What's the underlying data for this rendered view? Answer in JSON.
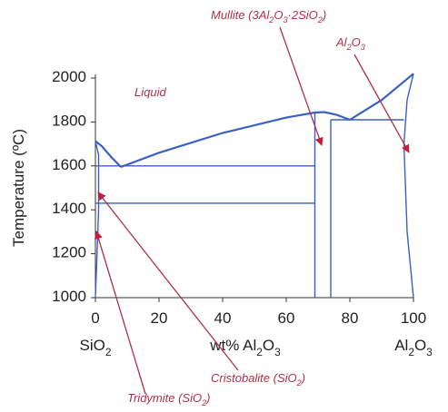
{
  "chart_data": {
    "type": "line",
    "y_label": "Temperature (ºC)",
    "x_label": "wt% Al2O3",
    "x_end_labels": [
      "SiO2",
      "Al2O3"
    ],
    "region_label": "Liquid",
    "annotations": [
      "Mullite (3Al2O3·2SiO2)",
      "Al2O3",
      "Cristobalite (SiO2)",
      "Tridymite (SiO2)"
    ],
    "line_color": "#3a5fc8",
    "annotation_color": "#b0304a",
    "xlim": [
      0,
      100
    ],
    "xticks": [
      0,
      20,
      40,
      60,
      80,
      100
    ],
    "ylim": [
      1000,
      2000
    ],
    "yticks": [
      1000,
      1200,
      1400,
      1600,
      1800,
      2000
    ],
    "series": [
      {
        "x": [
          0,
          2,
          5,
          8
        ],
        "values": [
          1713,
          1690,
          1640,
          1595
        ]
      },
      {
        "x": [
          8,
          20,
          40,
          60,
          69,
          72
        ],
        "values": [
          1595,
          1660,
          1750,
          1820,
          1843,
          1845
        ]
      },
      {
        "x": [
          72,
          76,
          80
        ],
        "values": [
          1845,
          1832,
          1810
        ]
      },
      {
        "x": [
          80,
          90,
          100
        ],
        "values": [
          1810,
          1900,
          2020
        ]
      },
      {
        "x": [
          0,
          69
        ],
        "values": [
          1600,
          1600
        ]
      },
      {
        "x": [
          0,
          69
        ],
        "values": [
          1430,
          1430
        ]
      },
      {
        "x": [
          74,
          97
        ],
        "values": [
          1810,
          1810
        ]
      },
      {
        "x": [
          69,
          69
        ],
        "values": [
          1000,
          1843
        ]
      },
      {
        "x": [
          74,
          74
        ],
        "values": [
          1000,
          1810
        ]
      },
      {
        "x": [
          0,
          1,
          1,
          0.5,
          0
        ],
        "values": [
          1713,
          1650,
          1400,
          1200,
          1000
        ]
      },
      {
        "x": [
          100,
          98,
          97,
          98,
          100
        ],
        "values": [
          2020,
          1900,
          1700,
          1300,
          1000
        ]
      }
    ]
  }
}
